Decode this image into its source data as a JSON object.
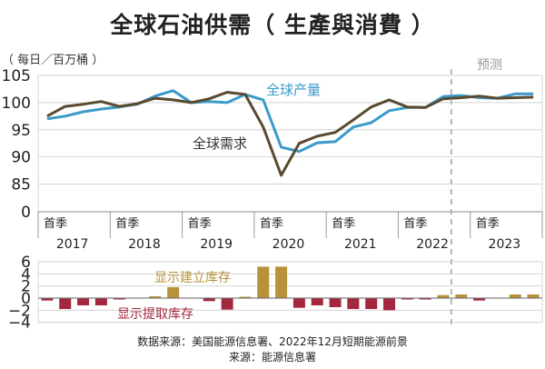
{
  "title": "全球石油供需（ 生產與消費 ）",
  "unit": "（ 每日／百万桶 ）",
  "forecast_label": "预测",
  "footer": {
    "line1": "数据来源：美国能源信息署、2022年12月短期能源前景",
    "line2": "来源：能源信息署"
  },
  "colors": {
    "supply": "#3a9ac9",
    "demand": "#5a4a2e",
    "build": "#b8923a",
    "draw": "#a3283f",
    "grid": "#d4d4d4",
    "forecast_line": "#b5b5b5"
  },
  "chart_data": [
    {
      "type": "line",
      "title": "全球石油供需（ 生產與消費 ）",
      "ylabel": "（ 每日／百万桶 ）",
      "xlabel": "",
      "quarter_tick_label": "首季",
      "years": [
        "2017",
        "2018",
        "2019",
        "2020",
        "2021",
        "2022",
        "2023"
      ],
      "x": [
        "2017Q1",
        "2017Q2",
        "2017Q3",
        "2017Q4",
        "2018Q1",
        "2018Q2",
        "2018Q3",
        "2018Q4",
        "2019Q1",
        "2019Q2",
        "2019Q3",
        "2019Q4",
        "2020Q1",
        "2020Q2",
        "2020Q3",
        "2020Q4",
        "2021Q1",
        "2021Q2",
        "2021Q3",
        "2021Q4",
        "2022Q1",
        "2022Q2",
        "2022Q3",
        "2022Q4",
        "2023Q1",
        "2023Q2",
        "2023Q3",
        "2023Q4"
      ],
      "yticks": [
        "105",
        "100",
        "95",
        "90",
        "85",
        "0"
      ],
      "ylim": [
        83,
        105
      ],
      "axis_break": "0 shown below 85 (broken axis)",
      "grid": true,
      "forecast_start": "2022Q4",
      "series": [
        {
          "name": "全球产量",
          "label": "全球产量",
          "values": [
            97.0,
            97.5,
            98.3,
            98.8,
            99.2,
            99.7,
            101.2,
            102.2,
            100.0,
            100.2,
            100.0,
            101.5,
            100.5,
            91.8,
            91.0,
            92.6,
            92.8,
            95.5,
            96.3,
            98.5,
            99.1,
            99.1,
            101.1,
            101.3,
            100.9,
            100.8,
            101.6,
            101.6
          ]
        },
        {
          "name": "全球需求",
          "label": "全球需求",
          "values": [
            97.5,
            99.3,
            99.7,
            100.2,
            99.3,
            99.8,
            100.8,
            100.5,
            100.0,
            100.7,
            101.9,
            101.5,
            95.5,
            86.6,
            92.5,
            93.8,
            94.5,
            96.8,
            99.2,
            100.5,
            99.2,
            99.1,
            100.7,
            100.9,
            101.2,
            100.8,
            100.9,
            101.0
          ]
        }
      ]
    },
    {
      "type": "bar",
      "title": "",
      "x": [
        "2017Q1",
        "2017Q2",
        "2017Q3",
        "2017Q4",
        "2018Q1",
        "2018Q2",
        "2018Q3",
        "2018Q4",
        "2019Q1",
        "2019Q2",
        "2019Q3",
        "2019Q4",
        "2020Q1",
        "2020Q2",
        "2020Q3",
        "2020Q4",
        "2021Q1",
        "2021Q2",
        "2021Q3",
        "2021Q4",
        "2022Q1",
        "2022Q2",
        "2022Q3",
        "2022Q4",
        "2023Q1",
        "2023Q2",
        "2023Q3",
        "2023Q4"
      ],
      "yticks": [
        "6",
        "4",
        "2",
        "0",
        "−2",
        "−4"
      ],
      "ylim": [
        -4,
        6
      ],
      "grid": true,
      "annotations": {
        "build": "显示建立库存",
        "draw": "显示提取库存"
      },
      "values": [
        -0.4,
        -1.8,
        -1.2,
        -1.2,
        -0.2,
        0.0,
        0.3,
        1.8,
        0.0,
        -0.5,
        -1.9,
        0.2,
        5.2,
        5.2,
        -1.6,
        -1.2,
        -1.5,
        -1.8,
        -1.8,
        -2.0,
        -0.1,
        -0.1,
        0.5,
        0.6,
        -0.4,
        0.0,
        0.6,
        0.6
      ]
    }
  ]
}
